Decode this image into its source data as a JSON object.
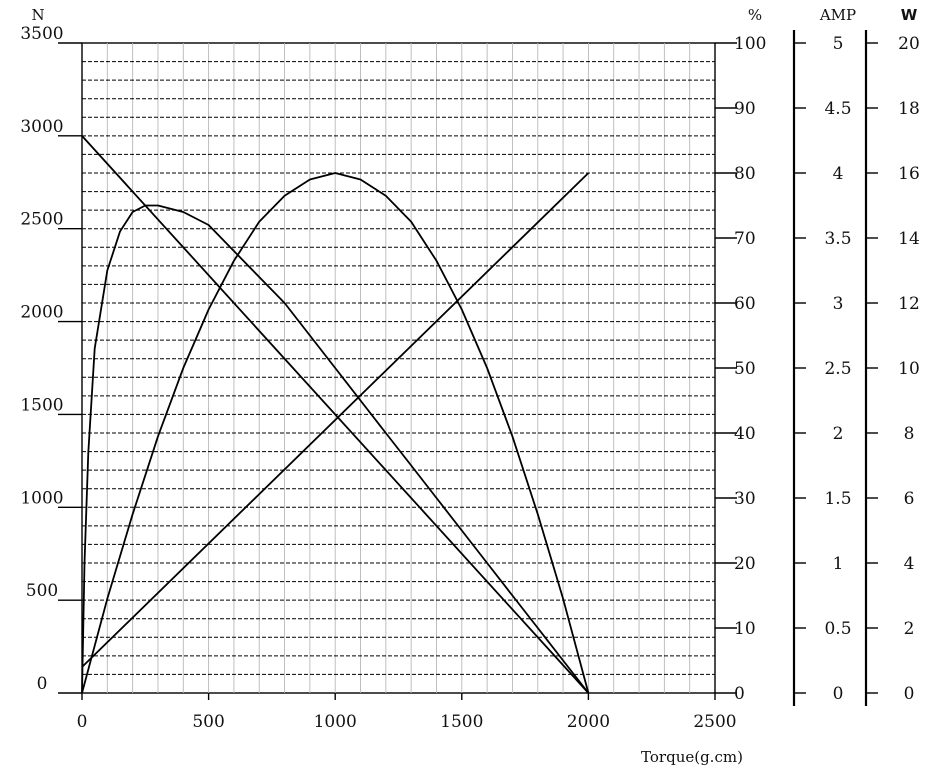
{
  "chart_data": {
    "type": "line",
    "title": "",
    "xlabel": "Torque(g.cm)",
    "x_ticks": [
      "0",
      "500",
      "1000",
      "1500",
      "2000",
      "2500"
    ],
    "xlim": [
      0,
      2500
    ],
    "axes": {
      "speed": {
        "unit": "N",
        "ticks": [
          "0",
          "500",
          "1000",
          "1500",
          "2000",
          "2500",
          "3000",
          "3500"
        ],
        "ylim": [
          0,
          3500
        ]
      },
      "efficiency": {
        "unit": "%",
        "ticks": [
          "0",
          "10",
          "20",
          "30",
          "40",
          "50",
          "60",
          "70",
          "80",
          "90",
          "100"
        ],
        "ylim": [
          0,
          100
        ]
      },
      "current": {
        "unit": "AMP",
        "ticks": [
          "0",
          "0.5",
          "1",
          "1.5",
          "2",
          "2.5",
          "3",
          "3.5",
          "4",
          "4.5",
          "5"
        ],
        "ylim": [
          0,
          5
        ]
      },
      "power": {
        "unit": "W",
        "ticks": [
          "0",
          "2",
          "4",
          "6",
          "8",
          "10",
          "12",
          "14",
          "16",
          "18",
          "20"
        ],
        "ylim": [
          0,
          20
        ]
      }
    },
    "grid": true,
    "series": [
      {
        "axis": "speed",
        "x": [
          0,
          2000
        ],
        "y": [
          3000,
          0
        ]
      },
      {
        "axis": "current",
        "x": [
          0,
          2000
        ],
        "y": [
          0.2,
          4.0
        ]
      },
      {
        "axis": "efficiency",
        "x": [
          0,
          10,
          25,
          50,
          100,
          150,
          200,
          250,
          300,
          400,
          500,
          600,
          700,
          800,
          900,
          1000,
          1100,
          1200,
          1300,
          1400,
          1500,
          1600,
          1700,
          1800,
          1900,
          2000
        ],
        "y": [
          0,
          20,
          37,
          53,
          65,
          71,
          74,
          75,
          75,
          74,
          72,
          68,
          64,
          60,
          55,
          50,
          45,
          40,
          35,
          30,
          25,
          20,
          15,
          10,
          5,
          0
        ]
      },
      {
        "axis": "power",
        "x": [
          0,
          100,
          200,
          300,
          400,
          500,
          600,
          700,
          800,
          900,
          1000,
          1100,
          1200,
          1300,
          1400,
          1500,
          1600,
          1700,
          1800,
          1900,
          2000
        ],
        "y": [
          0,
          2.9,
          5.5,
          7.9,
          10.0,
          11.8,
          13.3,
          14.5,
          15.3,
          15.8,
          16.0,
          15.8,
          15.3,
          14.5,
          13.3,
          11.8,
          10.0,
          7.9,
          5.5,
          2.9,
          0
        ]
      }
    ]
  }
}
